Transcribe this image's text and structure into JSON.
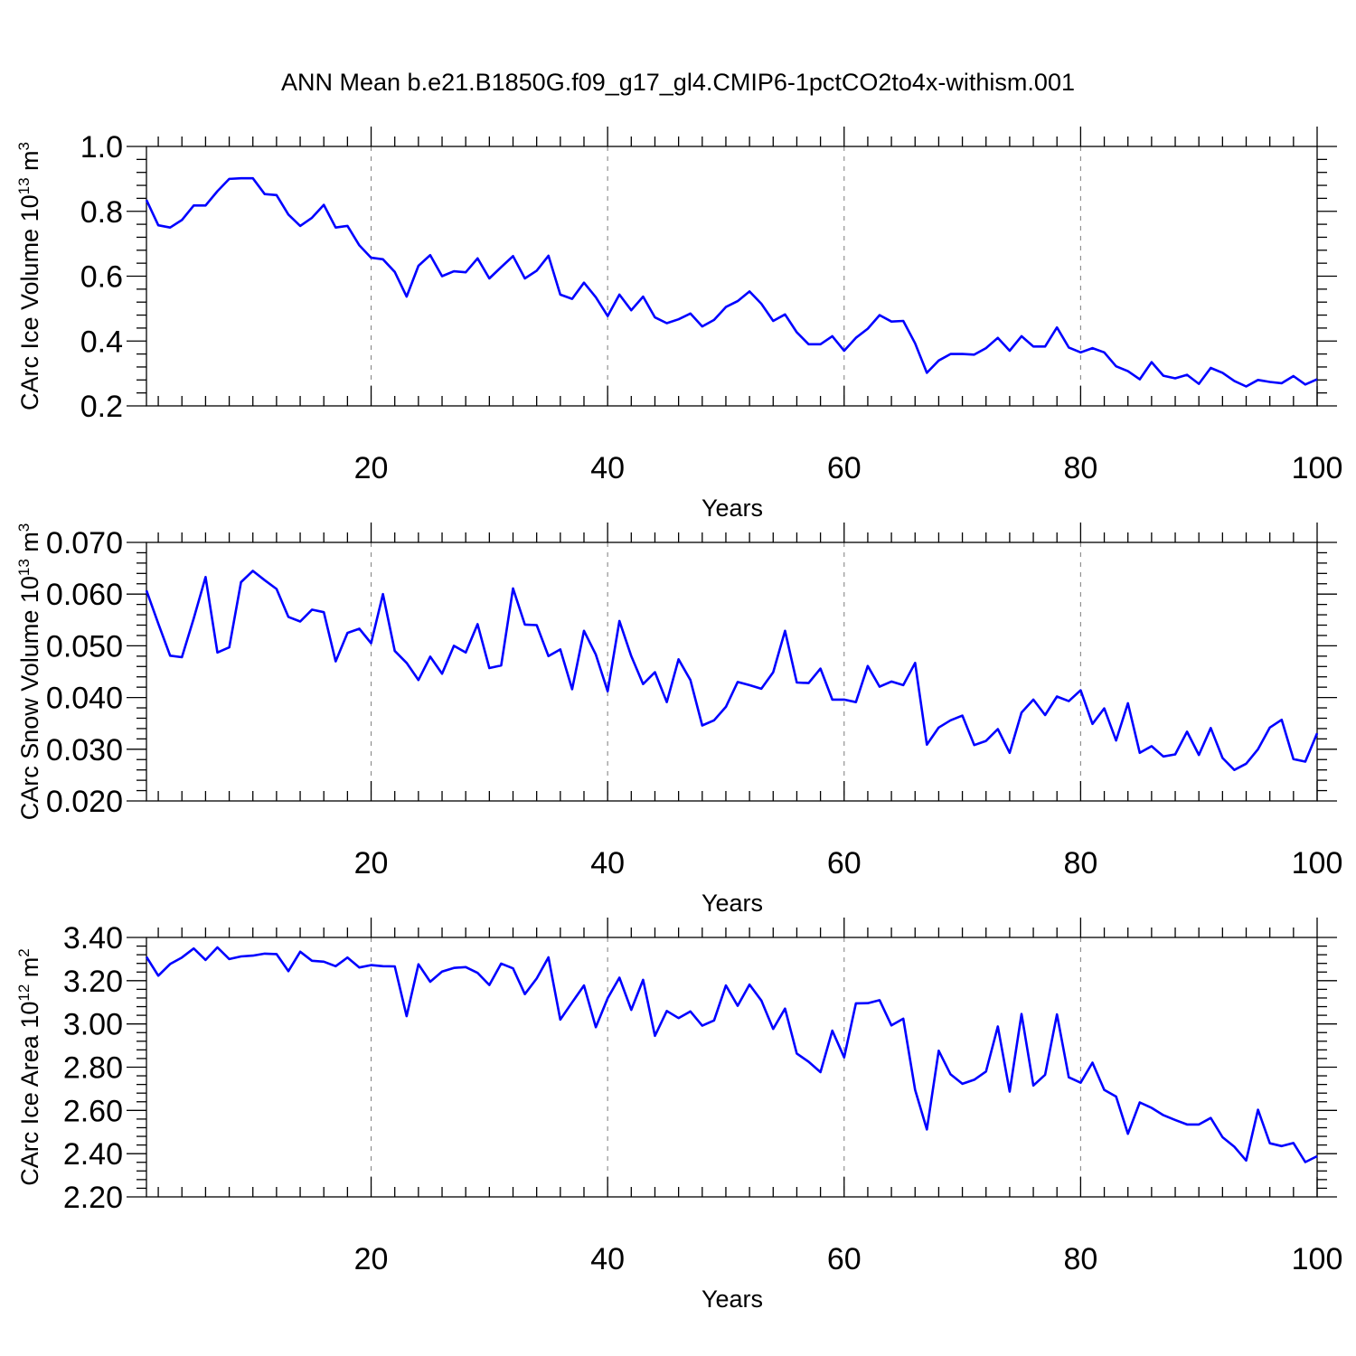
{
  "title": "ANN Mean b.e21.B1850G.f09_g17_gl4.CMIP6-1pctCO2to4x-withism.001",
  "chart_data": [
    {
      "type": "line",
      "ylabel": "CArc Ice Volume 10",
      "ylabel_exp": "13",
      "ylabel_unit": " m",
      "ylabel_unit_exp": "3",
      "xlabel": "Years",
      "xlim": [
        1,
        100
      ],
      "ylim": [
        0.2,
        1.0
      ],
      "yticks": [
        0.2,
        0.4,
        0.6,
        0.8,
        1.0
      ],
      "ytick_labels": [
        "0.2",
        "0.4",
        "0.6",
        "0.8",
        "1.0"
      ],
      "xticks": [
        20,
        40,
        60,
        80,
        100
      ],
      "xtick_labels": [
        "20",
        "40",
        "60",
        "80",
        "100"
      ],
      "grid_x": [
        20,
        40,
        60,
        80
      ],
      "color": "#0000ff",
      "values": [
        0.835,
        0.757,
        0.75,
        0.773,
        0.818,
        0.818,
        0.862,
        0.9,
        0.902,
        0.902,
        0.853,
        0.85,
        0.79,
        0.755,
        0.78,
        0.82,
        0.75,
        0.755,
        0.695,
        0.657,
        0.652,
        0.613,
        0.537,
        0.632,
        0.665,
        0.6,
        0.615,
        0.612,
        0.655,
        0.593,
        0.628,
        0.662,
        0.593,
        0.617,
        0.663,
        0.543,
        0.53,
        0.58,
        0.535,
        0.477,
        0.543,
        0.495,
        0.537,
        0.473,
        0.455,
        0.467,
        0.485,
        0.445,
        0.465,
        0.505,
        0.523,
        0.553,
        0.515,
        0.462,
        0.482,
        0.427,
        0.39,
        0.39,
        0.415,
        0.37,
        0.41,
        0.438,
        0.48,
        0.46,
        0.462,
        0.393,
        0.302,
        0.34,
        0.36,
        0.36,
        0.358,
        0.378,
        0.41,
        0.37,
        0.415,
        0.383,
        0.383,
        0.442,
        0.38,
        0.365,
        0.378,
        0.365,
        0.322,
        0.307,
        0.282,
        0.335,
        0.293,
        0.285,
        0.296,
        0.268,
        0.317,
        0.302,
        0.277,
        0.26,
        0.28,
        0.274,
        0.27,
        0.292,
        0.266,
        0.282
      ]
    },
    {
      "type": "line",
      "ylabel": "CArc Snow Volume 10",
      "ylabel_exp": "13",
      "ylabel_unit": " m",
      "ylabel_unit_exp": "3",
      "xlabel": "Years",
      "xlim": [
        1,
        100
      ],
      "ylim": [
        0.02,
        0.07
      ],
      "yticks": [
        0.02,
        0.03,
        0.04,
        0.05,
        0.06,
        0.07
      ],
      "ytick_labels": [
        "0.020",
        "0.030",
        "0.040",
        "0.050",
        "0.060",
        "0.070"
      ],
      "xticks": [
        20,
        40,
        60,
        80,
        100
      ],
      "xtick_labels": [
        "20",
        "40",
        "60",
        "80",
        "100"
      ],
      "grid_x": [
        20,
        40,
        60,
        80
      ],
      "color": "#0000ff",
      "values": [
        0.0607,
        0.0543,
        0.0481,
        0.0478,
        0.0553,
        0.0633,
        0.0487,
        0.0497,
        0.0623,
        0.0645,
        0.0627,
        0.061,
        0.0556,
        0.0547,
        0.057,
        0.0565,
        0.047,
        0.0525,
        0.0533,
        0.0505,
        0.06,
        0.049,
        0.0467,
        0.0434,
        0.0479,
        0.0446,
        0.05,
        0.0487,
        0.0542,
        0.0457,
        0.0462,
        0.0611,
        0.0541,
        0.054,
        0.048,
        0.0493,
        0.0416,
        0.0529,
        0.0483,
        0.0412,
        0.0548,
        0.048,
        0.0426,
        0.0449,
        0.0391,
        0.0474,
        0.0434,
        0.0346,
        0.0356,
        0.0382,
        0.043,
        0.0424,
        0.0417,
        0.0449,
        0.0529,
        0.0429,
        0.0428,
        0.0456,
        0.0396,
        0.0396,
        0.0391,
        0.0461,
        0.0421,
        0.0431,
        0.0424,
        0.0467,
        0.0309,
        0.0342,
        0.0356,
        0.0365,
        0.0308,
        0.0316,
        0.0339,
        0.0293,
        0.0371,
        0.0396,
        0.0366,
        0.0402,
        0.0393,
        0.0414,
        0.0349,
        0.0379,
        0.0317,
        0.0389,
        0.0293,
        0.0306,
        0.0286,
        0.029,
        0.0334,
        0.0289,
        0.0341,
        0.0283,
        0.026,
        0.0272,
        0.03,
        0.0342,
        0.0357,
        0.0281,
        0.0276,
        0.0331
      ]
    },
    {
      "type": "line",
      "ylabel": "CArc Ice Area 10",
      "ylabel_exp": "12",
      "ylabel_unit": " m",
      "ylabel_unit_exp": "2",
      "xlabel": "Years",
      "xlim": [
        1,
        100
      ],
      "ylim": [
        2.2,
        3.4
      ],
      "yticks": [
        2.2,
        2.4,
        2.6,
        2.8,
        3.0,
        3.2,
        3.4
      ],
      "ytick_labels": [
        "2.20",
        "2.40",
        "2.60",
        "2.80",
        "3.00",
        "3.20",
        "3.40"
      ],
      "xticks": [
        20,
        40,
        60,
        80,
        100
      ],
      "xtick_labels": [
        "20",
        "40",
        "60",
        "80",
        "100"
      ],
      "grid_x": [
        20,
        40,
        60,
        80
      ],
      "color": "#0000ff",
      "values": [
        3.31,
        3.223,
        3.277,
        3.307,
        3.349,
        3.296,
        3.354,
        3.3,
        3.312,
        3.316,
        3.325,
        3.323,
        3.244,
        3.334,
        3.292,
        3.288,
        3.267,
        3.307,
        3.261,
        3.272,
        3.267,
        3.266,
        3.036,
        3.276,
        3.195,
        3.242,
        3.259,
        3.263,
        3.236,
        3.18,
        3.279,
        3.257,
        3.138,
        3.21,
        3.308,
        3.02,
        3.1,
        3.178,
        2.985,
        3.119,
        3.214,
        3.065,
        3.204,
        2.945,
        3.06,
        3.027,
        3.058,
        2.992,
        3.016,
        3.178,
        3.084,
        3.182,
        3.108,
        2.977,
        3.071,
        2.863,
        2.825,
        2.777,
        2.969,
        2.845,
        3.095,
        3.096,
        3.11,
        2.993,
        3.024,
        2.695,
        2.512,
        2.876,
        2.767,
        2.723,
        2.742,
        2.78,
        2.988,
        2.687,
        3.046,
        2.715,
        2.765,
        3.044,
        2.753,
        2.728,
        2.821,
        2.695,
        2.664,
        2.492,
        2.637,
        2.612,
        2.578,
        2.556,
        2.535,
        2.535,
        2.565,
        2.476,
        2.432,
        2.368,
        2.603,
        2.448,
        2.435,
        2.449,
        2.361,
        2.388
      ]
    }
  ]
}
